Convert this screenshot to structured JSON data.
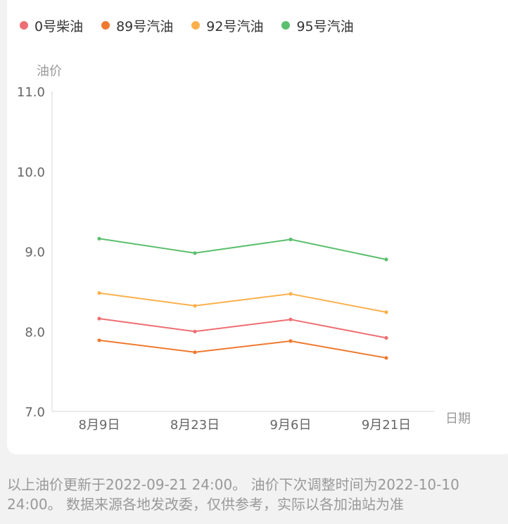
{
  "chart_data": {
    "type": "line",
    "ylabel": "油价",
    "xlabel": "日期",
    "categories": [
      "8月9日",
      "8月23日",
      "9月6日",
      "9月21日"
    ],
    "ylim": [
      7.0,
      11.0
    ],
    "yticks": [
      "7.0",
      "8.0",
      "9.0",
      "10.0",
      "11.0"
    ],
    "legend_position": "top-left",
    "grid": false,
    "series": [
      {
        "name": "0号柴油",
        "color": "#ee6e73",
        "values": [
          8.16,
          8.0,
          8.15,
          7.92
        ]
      },
      {
        "name": "89号汽油",
        "color": "#ee7a30",
        "values": [
          7.89,
          7.74,
          7.88,
          7.67
        ]
      },
      {
        "name": "92号汽油",
        "color": "#fbb04c",
        "values": [
          8.48,
          8.32,
          8.47,
          8.24
        ]
      },
      {
        "name": "95号汽油",
        "color": "#5bbf6e",
        "values": [
          9.16,
          8.98,
          9.15,
          8.9
        ]
      }
    ]
  },
  "footer": {
    "note": "以上油价更新于2022-09-21 24:00。 油价下次调整时间为2022-10-10 24:00。 数据来源各地发改委，仅供参考，实际以各加油站为准"
  }
}
